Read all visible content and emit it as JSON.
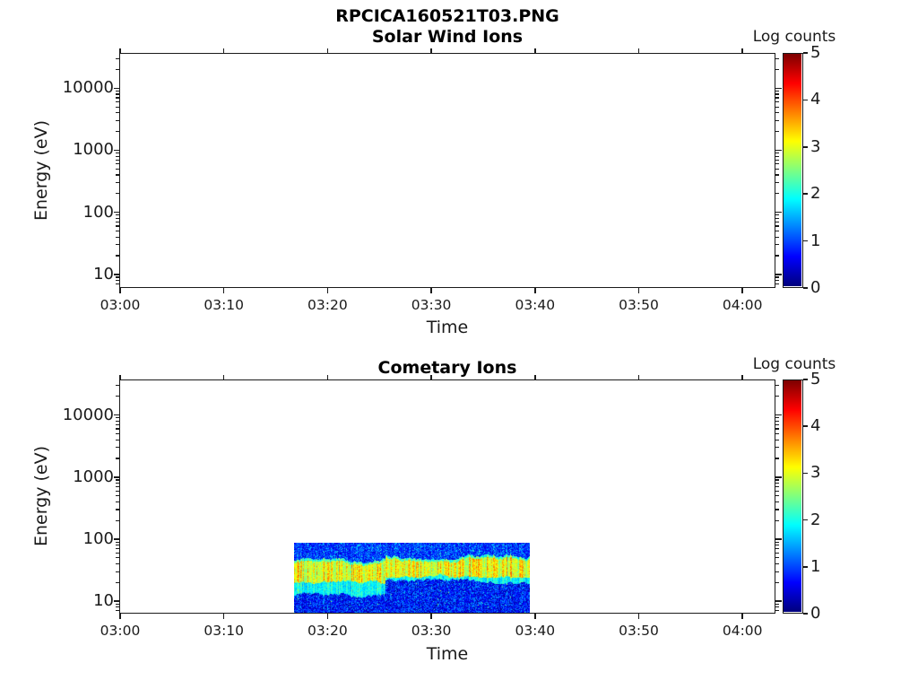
{
  "figure": {
    "suptitle": "RPCICA160521T03.PNG"
  },
  "colorbar": {
    "title": "Log counts",
    "tick_labels": [
      "0",
      "1",
      "2",
      "3",
      "4",
      "5"
    ],
    "range": [
      0,
      5
    ],
    "colormap": "jet"
  },
  "panels": [
    {
      "title": "Solar Wind Ions",
      "xlabel": "Time",
      "ylabel": "Energy (eV)",
      "x_tick_labels": [
        "03:00",
        "03:10",
        "03:20",
        "03:30",
        "03:40",
        "03:50",
        "04:00"
      ],
      "y_tick_labels": [
        "10",
        "100",
        "1000",
        "10000"
      ]
    },
    {
      "title": "Cometary Ions",
      "xlabel": "Time",
      "ylabel": "Energy (eV)",
      "x_tick_labels": [
        "03:00",
        "03:10",
        "03:20",
        "03:30",
        "03:40",
        "03:50",
        "04:00"
      ],
      "y_tick_labels": [
        "10",
        "100",
        "1000",
        "10000"
      ]
    }
  ],
  "chart_data": [
    {
      "type": "heatmap",
      "title": "Solar Wind Ions",
      "xlabel": "Time",
      "ylabel": "Energy (eV)",
      "x_range": [
        "03:00",
        "04:03"
      ],
      "x_major_ticks": [
        "03:00",
        "03:10",
        "03:20",
        "03:30",
        "03:40",
        "03:50",
        "04:00"
      ],
      "y_scale": "log",
      "y_range_ev": [
        6,
        40000
      ],
      "y_major_ticks_ev": [
        10,
        100,
        1000,
        10000
      ],
      "colorbar": {
        "title": "Log counts",
        "range": [
          0,
          5
        ],
        "ticks": [
          0,
          1,
          2,
          3,
          4,
          5
        ],
        "colormap": "jet"
      },
      "values": []
    },
    {
      "type": "heatmap",
      "title": "Cometary Ions",
      "xlabel": "Time",
      "ylabel": "Energy (eV)",
      "x_range": [
        "03:00",
        "04:03"
      ],
      "x_major_ticks": [
        "03:00",
        "03:10",
        "03:20",
        "03:30",
        "03:40",
        "03:50",
        "04:00"
      ],
      "y_scale": "log",
      "y_range_ev": [
        6,
        40000
      ],
      "y_major_ticks_ev": [
        10,
        100,
        1000,
        10000
      ],
      "colorbar": {
        "title": "Log counts",
        "range": [
          0,
          5
        ],
        "ticks": [
          0,
          1,
          2,
          3,
          4,
          5
        ],
        "colormap": "jet"
      },
      "data_block": {
        "time_start": "03:17",
        "time_end": "03:39",
        "time_start_min": 16.8,
        "time_end_min": 39.4,
        "energy_top_ev": 85,
        "energy_bottom_ev": 6,
        "segments": [
          {
            "from_min": 16.8,
            "to_min": 25.5,
            "yellow_band_ev": [
              20,
              42
            ],
            "cyan_low_ev": 13
          },
          {
            "from_min": 25.5,
            "to_min": 39.4,
            "yellow_band_ev": [
              26,
              48
            ],
            "cyan_low_ev": 21
          }
        ],
        "log_counts": {
          "yellow_band": 3.1,
          "cyan_band": 1.9,
          "blue_background": 0.9
        }
      }
    }
  ]
}
